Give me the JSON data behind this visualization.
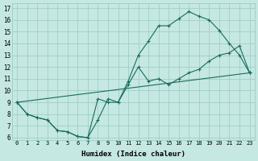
{
  "xlabel": "Humidex (Indice chaleur)",
  "xlim": [
    -0.5,
    23.5
  ],
  "ylim": [
    5.8,
    17.4
  ],
  "xticks": [
    0,
    1,
    2,
    3,
    4,
    5,
    6,
    7,
    8,
    9,
    10,
    11,
    12,
    13,
    14,
    15,
    16,
    17,
    18,
    19,
    20,
    21,
    22,
    23
  ],
  "yticks": [
    6,
    7,
    8,
    9,
    10,
    11,
    12,
    13,
    14,
    15,
    16,
    17
  ],
  "bg_color": "#c5e8e2",
  "grid_color": "#9dccc4",
  "line_color": "#1a6b5e",
  "line1_x": [
    0,
    1,
    2,
    3,
    4,
    5,
    6,
    7,
    8,
    9,
    10,
    11,
    12,
    13,
    14,
    15,
    16,
    17,
    18,
    19,
    20,
    21,
    22,
    23
  ],
  "line1_y": [
    9.0,
    8.0,
    7.7,
    7.5,
    6.6,
    6.5,
    6.1,
    6.0,
    7.5,
    9.3,
    9.0,
    10.5,
    12.0,
    10.8,
    11.0,
    10.5,
    11.0,
    11.5,
    11.8,
    12.5,
    13.0,
    13.2,
    13.8,
    11.5
  ],
  "line2_x": [
    0,
    1,
    2,
    3,
    4,
    5,
    6,
    7,
    8,
    9,
    10,
    11,
    12,
    13,
    14,
    15,
    16,
    17,
    18,
    19,
    20,
    21,
    22,
    23
  ],
  "line2_y": [
    9.0,
    8.0,
    7.7,
    7.5,
    6.6,
    6.5,
    6.1,
    6.0,
    9.3,
    9.0,
    9.0,
    10.8,
    13.0,
    14.2,
    15.5,
    15.5,
    16.1,
    16.7,
    16.3,
    16.0,
    15.1,
    14.0,
    13.0,
    11.5
  ],
  "line3_x": [
    0,
    23
  ],
  "line3_y": [
    9.0,
    11.5
  ]
}
